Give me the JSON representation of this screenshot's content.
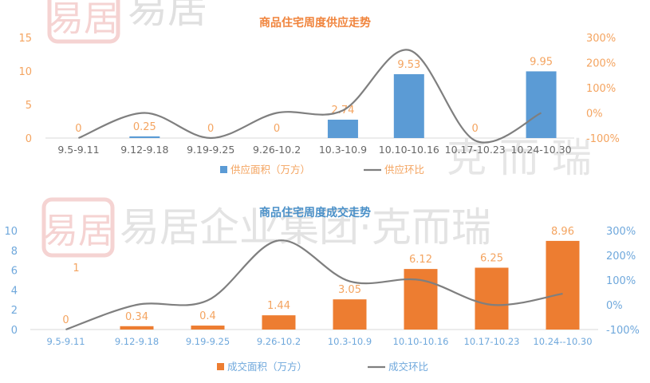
{
  "watermark": {
    "text_top": "易居",
    "text_mid": "易居企业集团·克而瑞",
    "text_right": "克 而 瑞",
    "seal": "易居"
  },
  "chart_data": [
    {
      "type": "bar",
      "title": "商品住宅周度供应走势",
      "categories": [
        "9.5-9.11",
        "9.12-9.18",
        "9.19-9.25",
        "9.26-10.2",
        "10.3-10.9",
        "10.10-10.16",
        "10.17-10.23",
        "10.24-10.30"
      ],
      "series": [
        {
          "name": "供应面积（万方）",
          "type": "bar",
          "axis": "left",
          "values": [
            0,
            0.25,
            0,
            0,
            2.74,
            9.53,
            0,
            9.95
          ],
          "labels": [
            "0",
            "0.25",
            "0",
            "0",
            "2.74",
            "9.53",
            "0",
            "9.95"
          ]
        },
        {
          "name": "供应环比",
          "type": "line",
          "axis": "right",
          "values": [
            -100,
            0,
            -100,
            0,
            10,
            250,
            -110,
            0
          ]
        }
      ],
      "ylim_left": [
        0,
        15
      ],
      "yticks_left": [
        "0",
        "5",
        "10",
        "15"
      ],
      "ylim_right": [
        -100,
        300
      ],
      "yticks_right": [
        "-100%",
        "0%",
        "100%",
        "200%",
        "300%"
      ],
      "colors": {
        "bar": "#5B9BD5",
        "line": "#7F7F7F",
        "axis_text": "#F4A460",
        "title": "#F0843C",
        "label": "#F4A460"
      },
      "legend": "bottom"
    },
    {
      "type": "bar",
      "title": "商品住宅周度成交走势",
      "categories": [
        "9.5-9.11",
        "9.12-9.18",
        "9.19-9.25",
        "9.26-10.2",
        "10.3-10.9",
        "10.10-10.16",
        "10.17-10.23",
        "10.24--10.30"
      ],
      "series": [
        {
          "name": "成交面积（万方）",
          "type": "bar",
          "axis": "left",
          "values": [
            0,
            0.34,
            0.4,
            1.44,
            3.05,
            6.12,
            6.25,
            8.96
          ],
          "labels": [
            "0",
            "0.34",
            "0.4",
            "1.44",
            "3.05",
            "6.12",
            "6.25",
            "8.96"
          ]
        },
        {
          "name": "成交环比",
          "type": "line",
          "axis": "right",
          "values": [
            -100,
            0,
            18,
            260,
            95,
            100,
            0,
            45
          ]
        }
      ],
      "ylim_left": [
        0,
        10
      ],
      "yticks_left": [
        "0",
        "2",
        "4",
        "6",
        "8",
        "10"
      ],
      "ylim_right": [
        -100,
        300
      ],
      "yticks_right": [
        "-100%",
        "0%",
        "100%",
        "200%",
        "300%"
      ],
      "extra_label": "1",
      "colors": {
        "bar": "#ED7D31",
        "line": "#7F7F7F",
        "axis_text": "#6FA8DC",
        "title": "#4A90C8",
        "label": "#F4A460"
      },
      "legend": "bottom"
    }
  ]
}
